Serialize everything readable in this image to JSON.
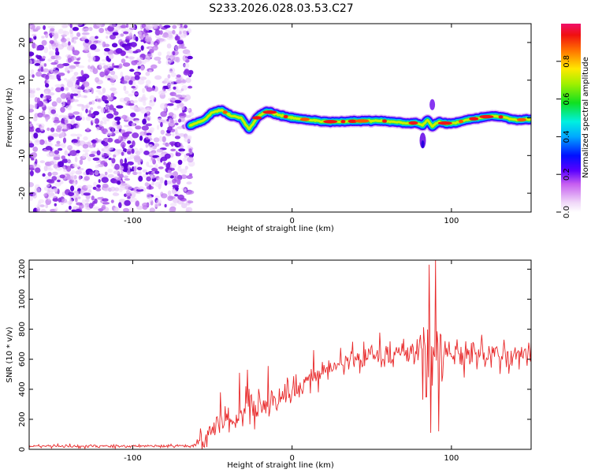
{
  "title": "S233.2026.028.03.53.C27",
  "colors": {
    "speckle": "#8a2be2",
    "snr_line": "#e8292a",
    "axis": "#000000"
  },
  "chart_data": [
    {
      "type": "heatmap",
      "name": "spectrogram",
      "xlabel": "Height of straight line (km)",
      "ylabel": "Frequency (Hz)",
      "xlim": [
        -165,
        150
      ],
      "ylim": [
        -25,
        25
      ],
      "xticks": [
        -100,
        0,
        100
      ],
      "yticks": [
        -20,
        -10,
        0,
        10,
        20
      ],
      "noise_region_x": [
        -165,
        -63
      ],
      "ridge": {
        "x": [
          -64,
          -55,
          -50,
          -44,
          -38,
          -32,
          -27,
          -22,
          -16,
          -12,
          -6,
          0,
          10,
          20,
          30,
          45,
          55,
          65,
          72,
          78,
          82,
          85,
          88,
          92,
          97,
          103,
          110,
          118,
          125,
          132,
          140,
          150
        ],
        "f": [
          -2,
          -0.5,
          1.5,
          2,
          0.5,
          0,
          -3,
          0,
          1.8,
          1.2,
          0.5,
          0,
          -0.5,
          -1,
          -1,
          -0.8,
          -0.8,
          -1,
          -1.5,
          -1.3,
          -2,
          -0.5,
          -2.3,
          -1,
          -1.5,
          -1.3,
          -0.5,
          0,
          0.5,
          0.2,
          -0.5,
          -0.5
        ]
      },
      "colorbar": {
        "label": "Normalized spectral amplitude",
        "range": [
          0,
          1
        ],
        "ticks": [
          "0.0",
          "0.2",
          "0.4",
          "0.6",
          "0.8"
        ]
      }
    },
    {
      "type": "line",
      "name": "snr",
      "xlabel": "Height of straight line (km)",
      "ylabel": "SNR (10 * v/v)",
      "xlim": [
        -165,
        150
      ],
      "ylim": [
        0,
        1260
      ],
      "xticks": [
        -100,
        0,
        100
      ],
      "yticks": [
        0,
        200,
        400,
        600,
        800,
        1000,
        1200
      ],
      "trend": {
        "x": [
          -165,
          -62,
          -55,
          -48,
          -40,
          -30,
          -20,
          -10,
          0,
          10,
          20,
          35,
          50,
          65,
          80,
          95,
          110,
          130,
          150
        ],
        "y": [
          22,
          22,
          80,
          150,
          190,
          230,
          290,
          330,
          390,
          450,
          520,
          590,
          630,
          640,
          650,
          640,
          635,
          630,
          630
        ]
      },
      "noise": {
        "x": [
          -165,
          -62,
          -55,
          -40,
          -20,
          20,
          60,
          150
        ],
        "sd": [
          6,
          6,
          35,
          55,
          50,
          45,
          50,
          50
        ]
      },
      "spikes": [
        {
          "x": -45,
          "y": 380
        },
        {
          "x": -33,
          "y": 510
        },
        {
          "x": -28,
          "y": 530
        },
        {
          "x": -15,
          "y": 555
        },
        {
          "x": 86,
          "y": 1230
        },
        {
          "x": 87,
          "y": 110
        },
        {
          "x": 90,
          "y": 1260
        },
        {
          "x": 92,
          "y": 120
        }
      ]
    }
  ]
}
